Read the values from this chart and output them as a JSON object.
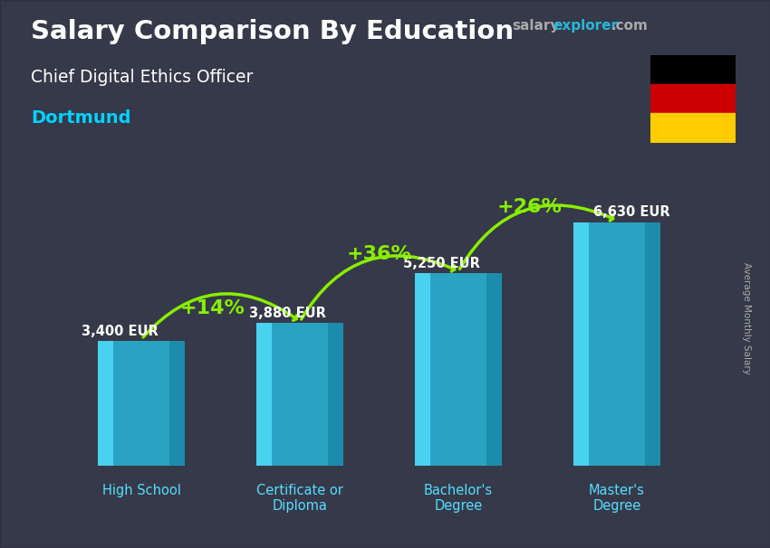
{
  "title_line1": "Salary Comparison By Education",
  "subtitle": "Chief Digital Ethics Officer",
  "city": "Dortmund",
  "ylabel": "Average Monthly Salary",
  "categories": [
    "High School",
    "Certificate or\nDiploma",
    "Bachelor's\nDegree",
    "Master's\nDegree"
  ],
  "values": [
    3400,
    3880,
    5250,
    6630
  ],
  "value_labels": [
    "3,400 EUR",
    "3,880 EUR",
    "5,250 EUR",
    "6,630 EUR"
  ],
  "pct_labels": [
    "+14%",
    "+36%",
    "+26%"
  ],
  "bar_color_main": "#29b6d8",
  "bar_color_left": "#4dd8f5",
  "bar_color_right": "#1a8aaa",
  "bar_color_top": "#5ae0ff",
  "bg_color": "#5a6070",
  "title_color": "#ffffff",
  "subtitle_color": "#ffffff",
  "city_color": "#00d4ff",
  "value_label_color": "#ffffff",
  "pct_color": "#88ee00",
  "arrow_color": "#88ee00",
  "xtick_color": "#55ddff",
  "ylabel_color": "#aaaaaa",
  "ylim": [
    0,
    8500
  ],
  "bar_width": 0.55,
  "fig_width": 8.5,
  "fig_height": 6.06,
  "watermark_salary_color": "#aaaaaa",
  "watermark_explorer_color": "#29b6d8",
  "watermark_com_color": "#aaaaaa"
}
